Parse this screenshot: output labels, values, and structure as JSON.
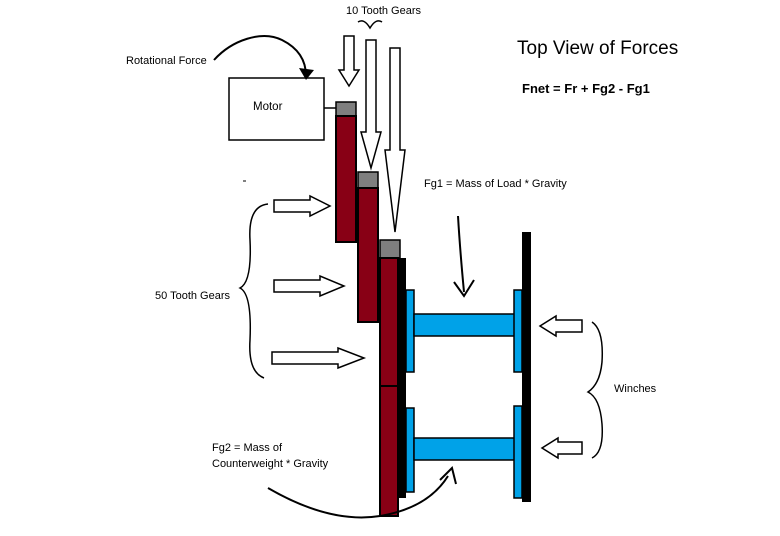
{
  "labels": {
    "top_gears": "10 Tooth Gears",
    "rotational_force": "Rotational Force",
    "motor": "Motor",
    "title": "Top View of Forces",
    "equation": "Fnet = Fr + Fg2 - Fg1",
    "fg1": "Fg1 = Mass of Load * Gravity",
    "big_gears": "50 Tooth Gears",
    "winches": "Winches",
    "fg2_line1": "Fg2 = Mass of",
    "fg2_line2": "Counterweight * Gravity"
  },
  "colors": {
    "gear_red": "#880015",
    "pinion_gray": "#7f7f7f",
    "winch_blue": "#00a2e8",
    "outline": "#000000"
  }
}
